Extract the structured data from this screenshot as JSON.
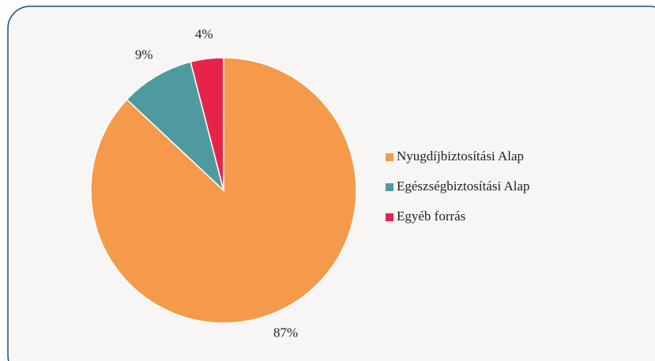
{
  "chart_data": {
    "type": "pie",
    "categories": [
      "Nyugdíjbiztosítási Alap",
      "Egészségbiztosítási Alap",
      "Egyéb forrás"
    ],
    "values": [
      87,
      9,
      4
    ],
    "value_labels": [
      "87%",
      "9%",
      "4%"
    ],
    "colors": [
      "#f59a4a",
      "#4f9a9f",
      "#e8234a"
    ],
    "legend": "right"
  }
}
